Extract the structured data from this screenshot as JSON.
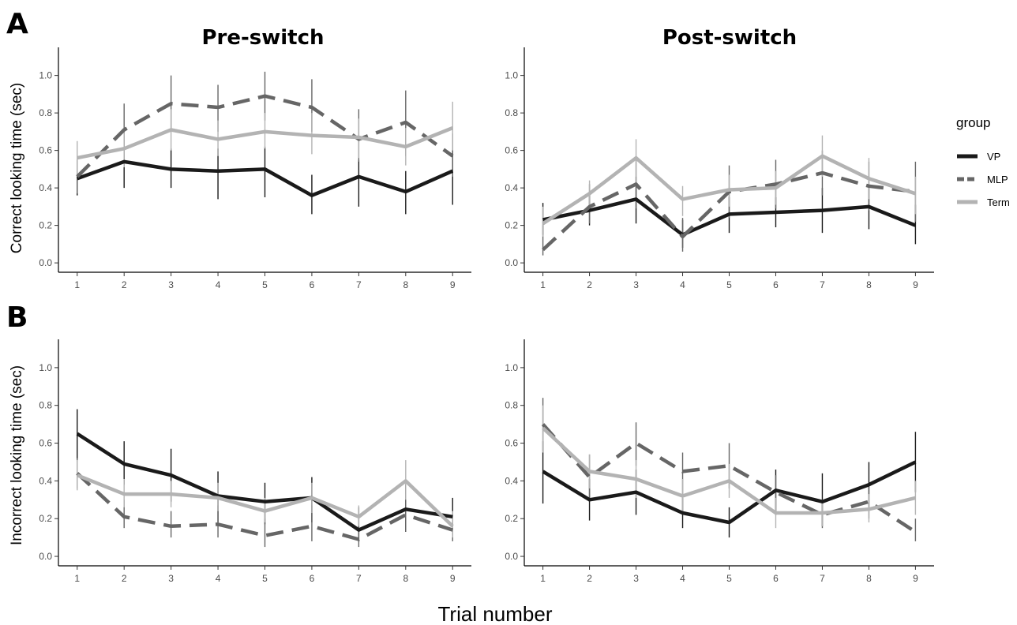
{
  "figure": {
    "panel_letters": [
      "A",
      "B"
    ],
    "column_titles": [
      "Pre-switch",
      "Post-switch"
    ],
    "xlabel": "Trial number",
    "legend_title": "group"
  },
  "chart_data": [
    {
      "type": "line",
      "panel": "A",
      "title": "Pre-switch",
      "xlabel": "",
      "ylabel": "Correct looking time (sec)",
      "x": [
        1,
        2,
        3,
        4,
        5,
        6,
        7,
        8,
        9
      ],
      "xlim": [
        0.6,
        9.4
      ],
      "ylim": [
        -0.05,
        1.15
      ],
      "yticks": [
        0.0,
        0.2,
        0.4,
        0.6,
        0.8,
        1.0
      ],
      "yticklabels": [
        "0.0",
        "0.2",
        "0.4",
        "0.6",
        "0.8",
        "1.0"
      ],
      "xticklabels": [
        "1",
        "2",
        "3",
        "4",
        "5",
        "6",
        "7",
        "8",
        "9"
      ],
      "grid": false,
      "series": [
        {
          "name": "VP",
          "color": "#1a1a1a",
          "dash": "solid",
          "values": [
            0.45,
            0.54,
            0.5,
            0.49,
            0.5,
            0.36,
            0.46,
            0.38,
            0.49
          ],
          "err_low": [
            0.36,
            0.4,
            0.4,
            0.34,
            0.35,
            0.26,
            0.3,
            0.26,
            0.31
          ],
          "err_high": [
            0.55,
            0.68,
            0.61,
            0.61,
            0.62,
            0.47,
            0.55,
            0.49,
            0.61
          ]
        },
        {
          "name": "MLP",
          "color": "#666666",
          "dash": "dashed",
          "values": [
            0.46,
            0.71,
            0.85,
            0.83,
            0.89,
            0.83,
            0.66,
            0.75,
            0.57
          ],
          "err_low": [
            0.37,
            0.58,
            0.71,
            0.7,
            0.76,
            0.7,
            0.54,
            0.57,
            0.46
          ],
          "err_high": [
            0.55,
            0.85,
            1.0,
            0.95,
            1.02,
            0.98,
            0.82,
            0.92,
            0.69
          ]
        },
        {
          "name": "Term",
          "color": "#b3b3b3",
          "dash": "solid",
          "values": [
            0.56,
            0.61,
            0.71,
            0.66,
            0.7,
            0.68,
            0.67,
            0.62,
            0.72
          ],
          "err_low": [
            0.47,
            0.51,
            0.6,
            0.57,
            0.61,
            0.58,
            0.56,
            0.52,
            0.6
          ],
          "err_high": [
            0.65,
            0.72,
            0.82,
            0.76,
            0.8,
            0.8,
            0.77,
            0.72,
            0.86
          ]
        }
      ]
    },
    {
      "type": "line",
      "panel": "A",
      "title": "Post-switch",
      "xlabel": "",
      "ylabel": "",
      "x": [
        1,
        2,
        3,
        4,
        5,
        6,
        7,
        8,
        9
      ],
      "xlim": [
        0.6,
        9.4
      ],
      "ylim": [
        -0.05,
        1.15
      ],
      "yticks": [
        0.0,
        0.2,
        0.4,
        0.6,
        0.8,
        1.0
      ],
      "yticklabels": [
        "0.0",
        "0.2",
        "0.4",
        "0.6",
        "0.8",
        "1.0"
      ],
      "xticklabels": [
        "1",
        "2",
        "3",
        "4",
        "5",
        "6",
        "7",
        "8",
        "9"
      ],
      "grid": false,
      "series": [
        {
          "name": "VP",
          "color": "#1a1a1a",
          "dash": "solid",
          "values": [
            0.23,
            0.28,
            0.34,
            0.15,
            0.26,
            0.27,
            0.28,
            0.3,
            0.2
          ],
          "err_low": [
            0.15,
            0.2,
            0.21,
            0.08,
            0.16,
            0.19,
            0.16,
            0.18,
            0.1
          ],
          "err_high": [
            0.32,
            0.37,
            0.46,
            0.23,
            0.35,
            0.35,
            0.4,
            0.41,
            0.31
          ]
        },
        {
          "name": "MLP",
          "color": "#666666",
          "dash": "dashed",
          "values": [
            0.07,
            0.3,
            0.42,
            0.14,
            0.38,
            0.42,
            0.48,
            0.41,
            0.38
          ],
          "err_low": [
            0.04,
            0.21,
            0.29,
            0.06,
            0.24,
            0.29,
            0.36,
            0.28,
            0.22
          ],
          "err_high": [
            0.2,
            0.42,
            0.55,
            0.24,
            0.52,
            0.55,
            0.6,
            0.54,
            0.54
          ]
        },
        {
          "name": "Term",
          "color": "#b3b3b3",
          "dash": "solid",
          "values": [
            0.21,
            0.37,
            0.56,
            0.34,
            0.39,
            0.4,
            0.57,
            0.45,
            0.37
          ],
          "err_low": [
            0.14,
            0.28,
            0.43,
            0.25,
            0.3,
            0.31,
            0.46,
            0.34,
            0.26
          ],
          "err_high": [
            0.3,
            0.44,
            0.66,
            0.41,
            0.47,
            0.49,
            0.68,
            0.56,
            0.46
          ]
        }
      ]
    },
    {
      "type": "line",
      "panel": "B",
      "title": "",
      "xlabel": "",
      "ylabel": "Incorrect looking time (sec)",
      "x": [
        1,
        2,
        3,
        4,
        5,
        6,
        7,
        8,
        9
      ],
      "xlim": [
        0.6,
        9.4
      ],
      "ylim": [
        -0.05,
        1.15
      ],
      "yticks": [
        0.0,
        0.2,
        0.4,
        0.6,
        0.8,
        1.0
      ],
      "yticklabels": [
        "0.0",
        "0.2",
        "0.4",
        "0.6",
        "0.8",
        "1.0"
      ],
      "xticklabels": [
        "1",
        "2",
        "3",
        "4",
        "5",
        "6",
        "7",
        "8",
        "9"
      ],
      "grid": false,
      "series": [
        {
          "name": "VP",
          "color": "#1a1a1a",
          "dash": "solid",
          "values": [
            0.65,
            0.49,
            0.43,
            0.32,
            0.29,
            0.31,
            0.14,
            0.25,
            0.21
          ],
          "err_low": [
            0.5,
            0.38,
            0.29,
            0.18,
            0.17,
            0.18,
            0.08,
            0.13,
            0.11
          ],
          "err_high": [
            0.78,
            0.61,
            0.57,
            0.45,
            0.39,
            0.42,
            0.26,
            0.38,
            0.31
          ]
        },
        {
          "name": "MLP",
          "color": "#666666",
          "dash": "dashed",
          "values": [
            0.44,
            0.21,
            0.16,
            0.17,
            0.11,
            0.16,
            0.09,
            0.22,
            0.14
          ],
          "err_low": [
            0.36,
            0.15,
            0.1,
            0.1,
            0.05,
            0.08,
            0.05,
            0.13,
            0.08
          ],
          "err_high": [
            0.52,
            0.3,
            0.24,
            0.27,
            0.2,
            0.27,
            0.16,
            0.33,
            0.22
          ]
        },
        {
          "name": "Term",
          "color": "#b3b3b3",
          "dash": "solid",
          "values": [
            0.43,
            0.33,
            0.33,
            0.31,
            0.24,
            0.31,
            0.21,
            0.4,
            0.16
          ],
          "err_low": [
            0.35,
            0.26,
            0.26,
            0.24,
            0.18,
            0.23,
            0.16,
            0.3,
            0.1
          ],
          "err_high": [
            0.51,
            0.41,
            0.4,
            0.39,
            0.31,
            0.39,
            0.27,
            0.51,
            0.24
          ]
        }
      ]
    },
    {
      "type": "line",
      "panel": "B",
      "title": "",
      "xlabel": "",
      "ylabel": "",
      "x": [
        1,
        2,
        3,
        4,
        5,
        6,
        7,
        8,
        9
      ],
      "xlim": [
        0.6,
        9.4
      ],
      "ylim": [
        -0.05,
        1.15
      ],
      "yticks": [
        0.0,
        0.2,
        0.4,
        0.6,
        0.8,
        1.0
      ],
      "yticklabels": [
        "0.0",
        "0.2",
        "0.4",
        "0.6",
        "0.8",
        "1.0"
      ],
      "xticklabels": [
        "1",
        "2",
        "3",
        "4",
        "5",
        "6",
        "7",
        "8",
        "9"
      ],
      "grid": false,
      "series": [
        {
          "name": "VP",
          "color": "#1a1a1a",
          "dash": "solid",
          "values": [
            0.45,
            0.3,
            0.34,
            0.23,
            0.18,
            0.35,
            0.29,
            0.38,
            0.5
          ],
          "err_low": [
            0.28,
            0.19,
            0.22,
            0.15,
            0.1,
            0.22,
            0.16,
            0.26,
            0.34
          ],
          "err_high": [
            0.61,
            0.41,
            0.46,
            0.31,
            0.26,
            0.46,
            0.44,
            0.5,
            0.66
          ]
        },
        {
          "name": "MLP",
          "color": "#666666",
          "dash": "dashed",
          "values": [
            0.7,
            0.42,
            0.6,
            0.45,
            0.48,
            0.34,
            0.22,
            0.29,
            0.13
          ],
          "err_low": [
            0.56,
            0.3,
            0.48,
            0.33,
            0.36,
            0.24,
            0.15,
            0.2,
            0.08
          ],
          "err_high": [
            0.84,
            0.54,
            0.71,
            0.55,
            0.6,
            0.43,
            0.3,
            0.38,
            0.2
          ]
        },
        {
          "name": "Term",
          "color": "#b3b3b3",
          "dash": "solid",
          "values": [
            0.68,
            0.45,
            0.41,
            0.32,
            0.4,
            0.23,
            0.23,
            0.25,
            0.31
          ],
          "err_low": [
            0.55,
            0.36,
            0.31,
            0.24,
            0.31,
            0.15,
            0.16,
            0.18,
            0.22
          ],
          "err_high": [
            0.8,
            0.54,
            0.51,
            0.41,
            0.49,
            0.31,
            0.3,
            0.33,
            0.4
          ]
        }
      ]
    }
  ]
}
